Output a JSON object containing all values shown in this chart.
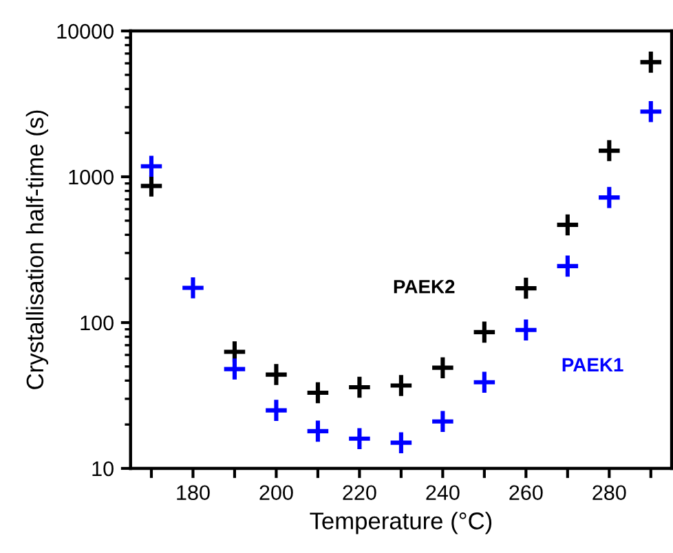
{
  "chart_data": {
    "type": "scatter",
    "xlabel": "Temperature (°C)",
    "ylabel": "Crystallisation half-time (s)",
    "x": [
      170,
      180,
      190,
      200,
      210,
      220,
      230,
      240,
      250,
      260,
      270,
      280,
      290
    ],
    "series": [
      {
        "name": "PAEK2",
        "color": "#000000",
        "values": [
          865,
          null,
          63,
          44,
          33,
          36,
          37,
          49,
          86,
          172,
          468,
          1510,
          6110
        ]
      },
      {
        "name": "PAEK1",
        "color": "#0000ff",
        "values": [
          1180,
          173,
          48,
          25,
          18,
          16,
          15,
          21,
          39,
          89,
          244,
          721,
          2800
        ]
      }
    ],
    "log": "y",
    "xlim": [
      165,
      295
    ],
    "ylim": [
      10,
      10000
    ],
    "xticks": [
      {
        "value": 170,
        "label": null
      },
      180,
      {
        "value": 190,
        "label": null
      },
      200,
      {
        "value": 210,
        "label": null
      },
      220,
      {
        "value": 230,
        "label": null
      },
      240,
      {
        "value": 250,
        "label": null
      },
      260,
      {
        "value": 270,
        "label": null
      },
      280,
      {
        "value": 290,
        "label": null
      }
    ],
    "yticks": [
      10,
      100,
      1000,
      10000
    ],
    "marker": "cross",
    "grid": false,
    "legend": false
  }
}
